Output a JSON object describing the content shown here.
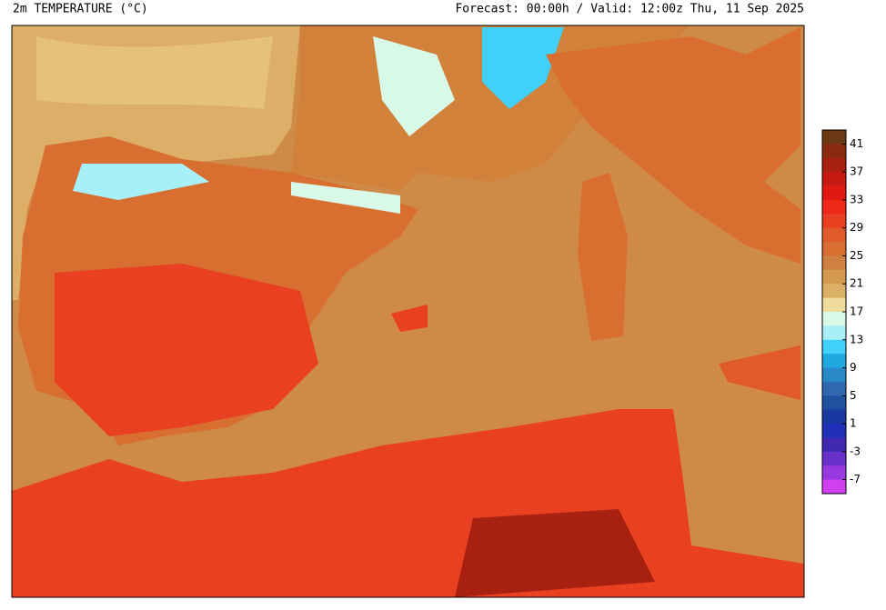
{
  "header": {
    "title": "2m TEMPERATURE (°C)",
    "forecast": "Forecast: 00:00h / Valid: 12:00z Thu, 11 Sep 2025"
  },
  "colorbar": {
    "labels": [
      "41",
      "37",
      "33",
      "29",
      "25",
      "21",
      "17",
      "13",
      "9",
      "5",
      "1",
      "-3",
      "-7"
    ],
    "colors": [
      "#6b3a14",
      "#8b2a10",
      "#a82010",
      "#c41a12",
      "#e01a10",
      "#f02818",
      "#e84020",
      "#e05a2a",
      "#d86e30",
      "#d08040",
      "#d49a50",
      "#dcb066",
      "#f0dc9c",
      "#d8f8e8",
      "#a8f0f8",
      "#40d0f8",
      "#20a8e0",
      "#2888c8",
      "#3068b0",
      "#2050a0",
      "#1838a0",
      "#2030b8",
      "#4028b0",
      "#6830c8",
      "#9838e0",
      "#d040f0"
    ]
  }
}
